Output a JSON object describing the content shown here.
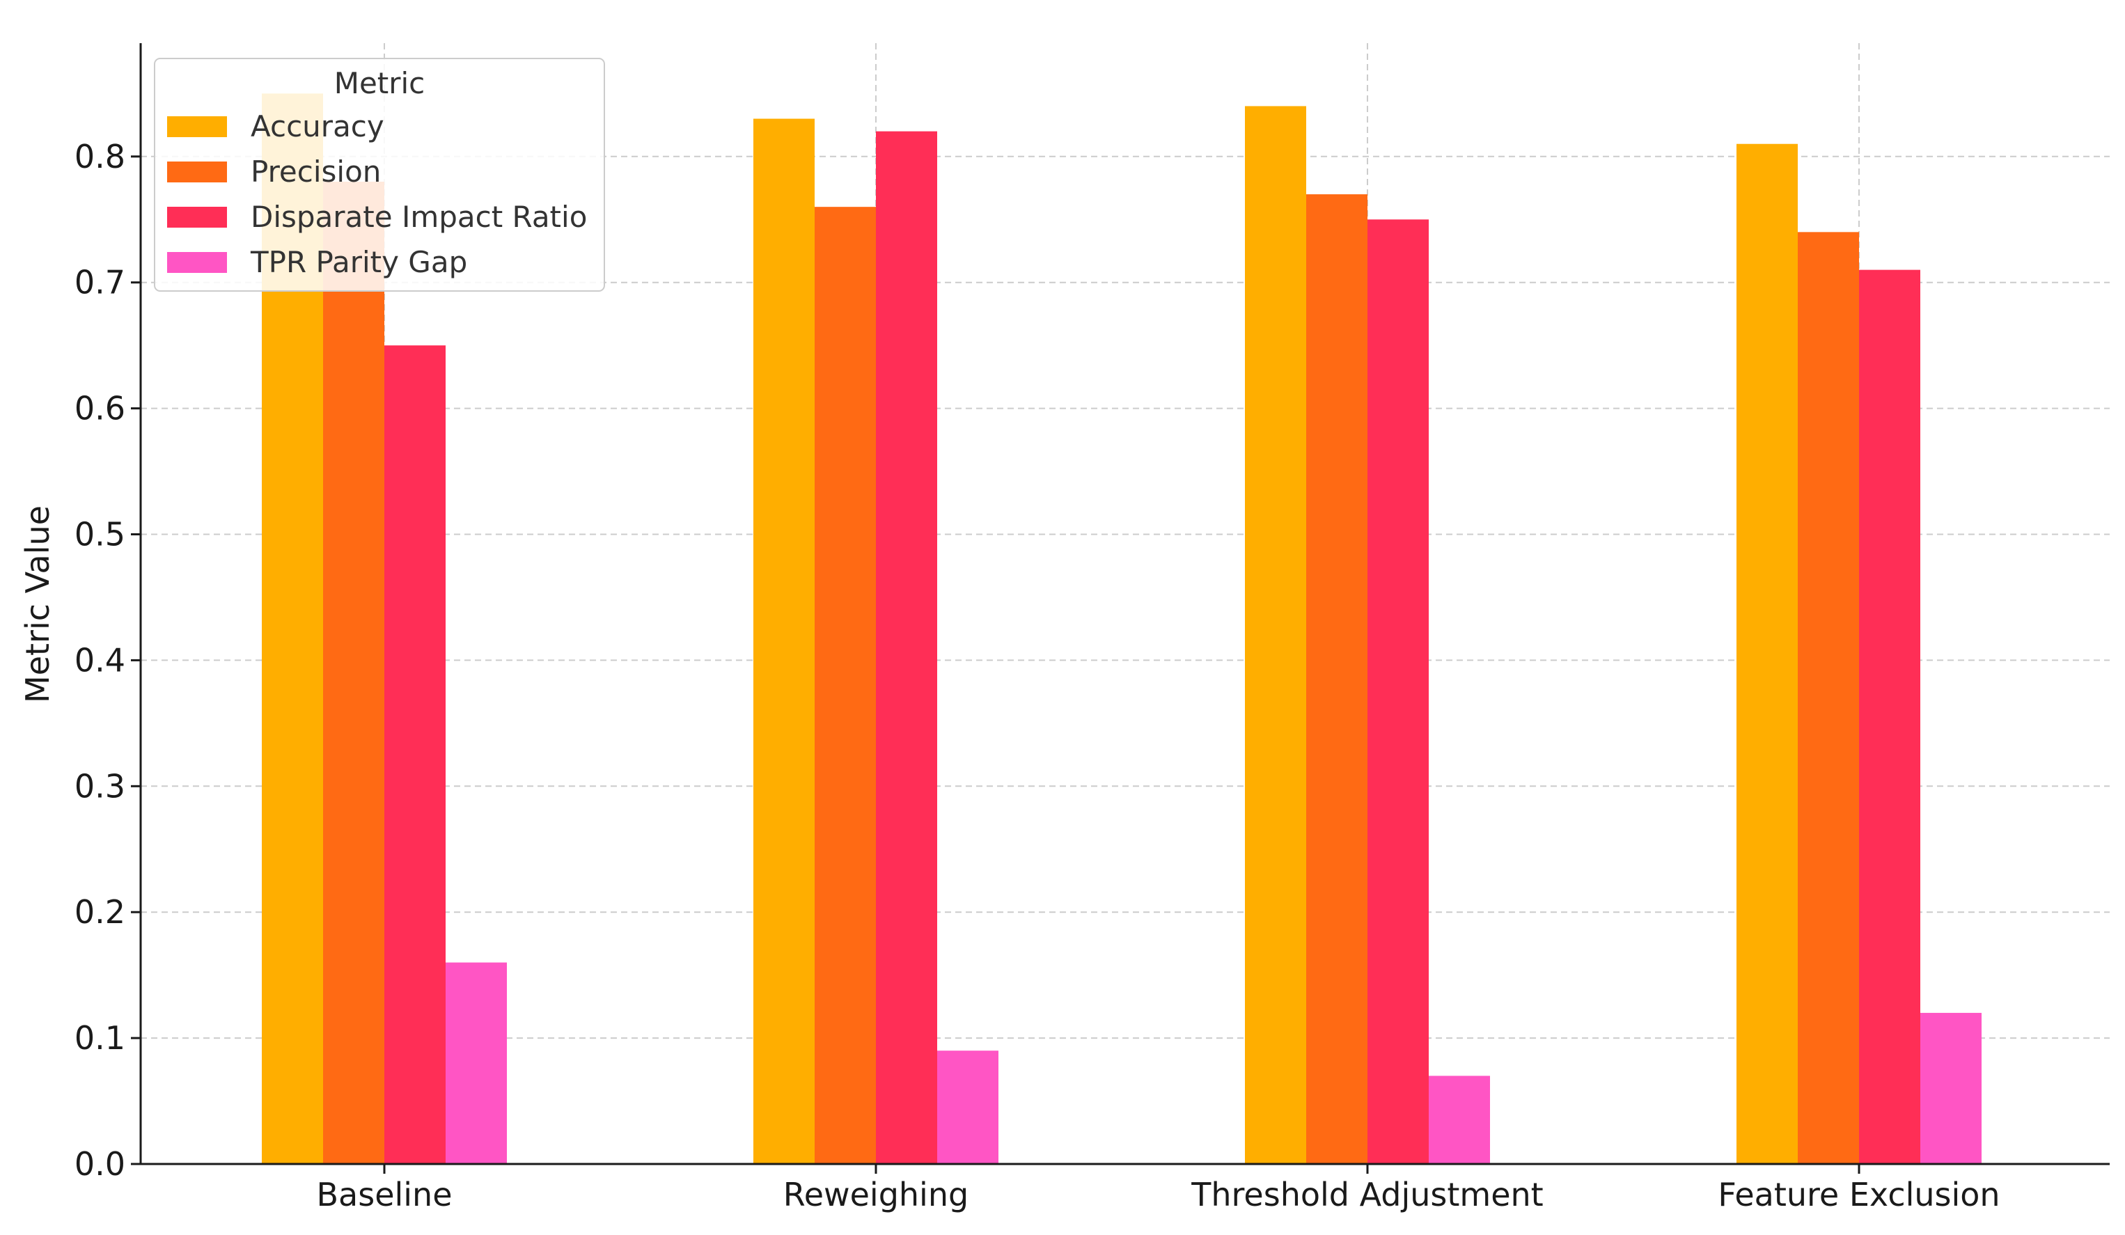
{
  "chart_data": {
    "type": "bar",
    "title": "",
    "xlabel": "",
    "ylabel": "Metric Value",
    "ylim": [
      0,
      0.89
    ],
    "yticks": [
      "0.0",
      "0.1",
      "0.2",
      "0.3",
      "0.4",
      "0.5",
      "0.6",
      "0.7",
      "0.8"
    ],
    "grid": true,
    "categories": [
      "Baseline",
      "Reweighing",
      "Threshold Adjustment",
      "Feature Exclusion"
    ],
    "legend": {
      "title": "Metric",
      "placement": "top-left"
    },
    "series": [
      {
        "name": "Accuracy",
        "color": "#FFAE00",
        "values": [
          0.85,
          0.83,
          0.84,
          0.81
        ]
      },
      {
        "name": "Precision",
        "color": "#FF6A14",
        "values": [
          0.78,
          0.76,
          0.77,
          0.74
        ]
      },
      {
        "name": "Disparate Impact Ratio",
        "color": "#FF2E56",
        "values": [
          0.65,
          0.82,
          0.75,
          0.71
        ]
      },
      {
        "name": "TPR Parity Gap",
        "color": "#FF55C4",
        "values": [
          0.16,
          0.09,
          0.07,
          0.12
        ]
      }
    ]
  }
}
